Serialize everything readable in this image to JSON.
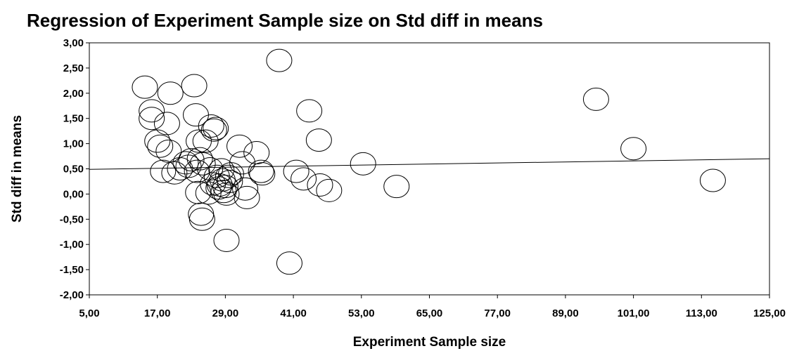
{
  "chart_data": {
    "type": "scatter",
    "title": "Regression of Experiment Sample size on Std diff in means",
    "xlabel": "Experiment Sample size",
    "ylabel": "Std diff in means",
    "xlim": [
      5,
      125
    ],
    "ylim": [
      -2,
      3
    ],
    "x_ticks": [
      5,
      17,
      29,
      41,
      53,
      65,
      77,
      89,
      101,
      113,
      125
    ],
    "y_ticks": [
      -2,
      -1.5,
      -1,
      -0.5,
      0,
      0.5,
      1,
      1.5,
      2,
      2.5,
      3
    ],
    "x_tick_labels": [
      "5,00",
      "17,00",
      "29,00",
      "41,00",
      "53,00",
      "65,00",
      "77,00",
      "89,00",
      "101,00",
      "113,00",
      "125,00"
    ],
    "y_tick_labels": [
      "-2,00",
      "-1,50",
      "-1,00",
      "-0,50",
      "0,00",
      "0,50",
      "1,00",
      "1,50",
      "2,00",
      "2,50",
      "3,00"
    ],
    "grid": false,
    "marker": "open-circle",
    "regression_line": {
      "x": [
        5,
        125
      ],
      "y": [
        0.49,
        0.7
      ]
    },
    "points": [
      {
        "x": 14.8,
        "y": 2.12
      },
      {
        "x": 16.0,
        "y": 1.65
      },
      {
        "x": 16.0,
        "y": 1.5
      },
      {
        "x": 17.0,
        "y": 1.05
      },
      {
        "x": 17.5,
        "y": 0.95
      },
      {
        "x": 18.0,
        "y": 0.45
      },
      {
        "x": 18.7,
        "y": 1.4
      },
      {
        "x": 19.0,
        "y": 0.85
      },
      {
        "x": 19.3,
        "y": 2.0
      },
      {
        "x": 20.0,
        "y": 0.42
      },
      {
        "x": 21.0,
        "y": 0.5
      },
      {
        "x": 22.0,
        "y": 0.62
      },
      {
        "x": 22.5,
        "y": 0.55
      },
      {
        "x": 23.0,
        "y": 0.68
      },
      {
        "x": 23.5,
        "y": 2.15
      },
      {
        "x": 23.8,
        "y": 1.57
      },
      {
        "x": 24.0,
        "y": 0.45
      },
      {
        "x": 24.2,
        "y": 0.03
      },
      {
        "x": 24.3,
        "y": 1.05
      },
      {
        "x": 24.5,
        "y": 0.7
      },
      {
        "x": 24.7,
        "y": -0.4
      },
      {
        "x": 24.9,
        "y": -0.5
      },
      {
        "x": 25.0,
        "y": 0.6
      },
      {
        "x": 25.5,
        "y": 1.05
      },
      {
        "x": 26.0,
        "y": 0.02
      },
      {
        "x": 26.3,
        "y": 0.5
      },
      {
        "x": 26.5,
        "y": 1.35
      },
      {
        "x": 26.8,
        "y": 0.2
      },
      {
        "x": 27.0,
        "y": 1.27
      },
      {
        "x": 27.3,
        "y": 1.3
      },
      {
        "x": 27.5,
        "y": 0.35
      },
      {
        "x": 27.8,
        "y": 0.12
      },
      {
        "x": 28.0,
        "y": 0.18
      },
      {
        "x": 28.3,
        "y": 0.48
      },
      {
        "x": 28.5,
        "y": 0.28
      },
      {
        "x": 28.7,
        "y": 0.05
      },
      {
        "x": 29.0,
        "y": 0.15
      },
      {
        "x": 29.2,
        "y": 0.0
      },
      {
        "x": 29.5,
        "y": 0.35
      },
      {
        "x": 29.8,
        "y": 0.25
      },
      {
        "x": 30.0,
        "y": 0.4
      },
      {
        "x": 29.2,
        "y": -0.92
      },
      {
        "x": 31.5,
        "y": 0.95
      },
      {
        "x": 32.0,
        "y": 0.62
      },
      {
        "x": 32.5,
        "y": 0.1
      },
      {
        "x": 32.8,
        "y": -0.07
      },
      {
        "x": 34.5,
        "y": 0.82
      },
      {
        "x": 35.3,
        "y": 0.45
      },
      {
        "x": 35.5,
        "y": 0.4
      },
      {
        "x": 38.5,
        "y": 2.65
      },
      {
        "x": 40.3,
        "y": -1.37
      },
      {
        "x": 41.5,
        "y": 0.45
      },
      {
        "x": 42.8,
        "y": 0.3
      },
      {
        "x": 43.8,
        "y": 1.65
      },
      {
        "x": 45.5,
        "y": 1.07
      },
      {
        "x": 45.7,
        "y": 0.18
      },
      {
        "x": 47.3,
        "y": 0.07
      },
      {
        "x": 53.3,
        "y": 0.6
      },
      {
        "x": 59.2,
        "y": 0.15
      },
      {
        "x": 94.4,
        "y": 1.88
      },
      {
        "x": 101.0,
        "y": 0.9
      },
      {
        "x": 115.0,
        "y": 0.27
      }
    ]
  }
}
